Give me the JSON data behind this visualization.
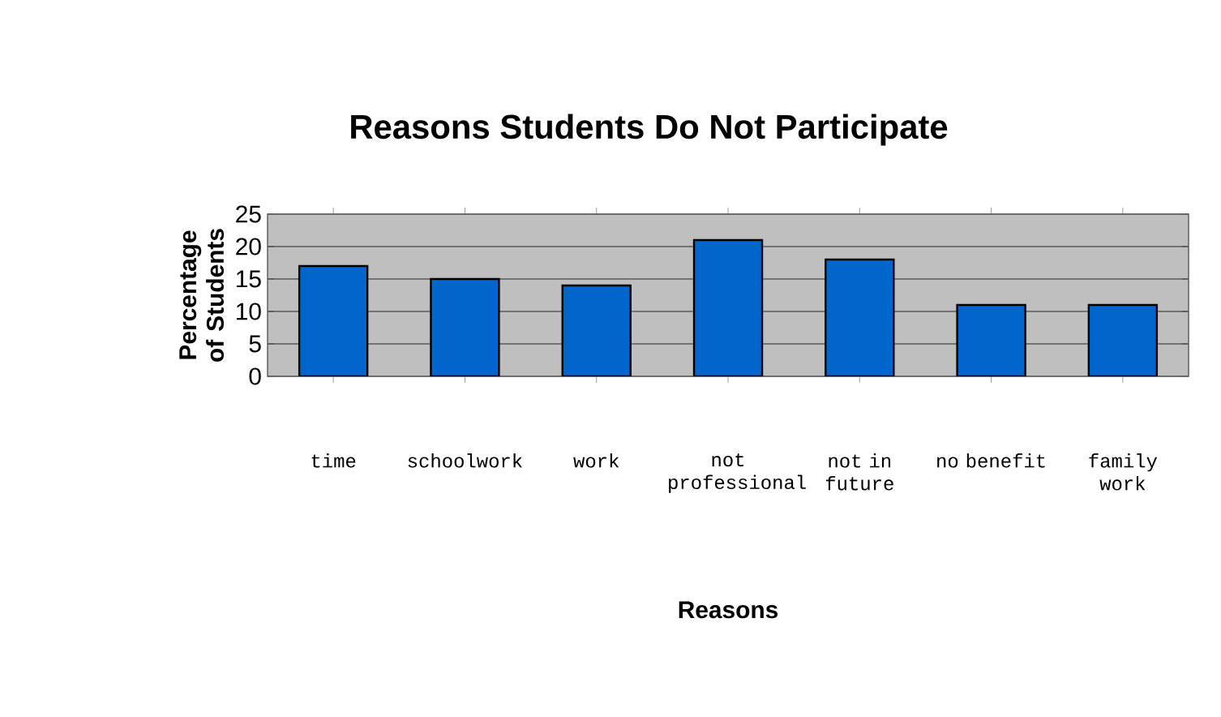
{
  "chart_data": {
    "type": "bar",
    "title": "Reasons Students Do Not Participate",
    "xlabel": "Reasons",
    "ylabel": "Percentage of Students",
    "categories": [
      "time",
      "schoolwork",
      "work",
      "not professional",
      "not in future",
      "no benefit",
      "family work"
    ],
    "values": [
      17,
      15,
      14,
      21,
      18,
      11,
      11
    ],
    "color": "#0066cc",
    "ylim": [
      0,
      25
    ],
    "yticks": [
      0,
      5,
      10,
      15,
      20,
      25
    ],
    "grid": "y"
  }
}
